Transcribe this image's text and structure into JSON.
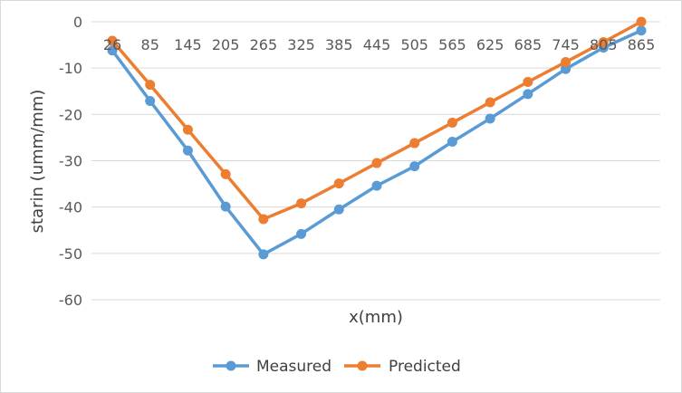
{
  "chart_data": {
    "type": "line",
    "title": "",
    "xlabel": "x(mm)",
    "ylabel": "starin (umm/mm)",
    "categories": [
      "26",
      "85",
      "145",
      "205",
      "265",
      "325",
      "385",
      "445",
      "505",
      "565",
      "625",
      "685",
      "745",
      "805",
      "865"
    ],
    "ylim": [
      -60,
      0
    ],
    "yticks": [
      "0",
      "-10",
      "-20",
      "-30",
      "-40",
      "-50",
      "-60"
    ],
    "grid": true,
    "legend_position": "bottom",
    "series": [
      {
        "name": "Measured",
        "color": "#5b9bd5",
        "values": [
          -6.2,
          -17.1,
          -27.8,
          -39.9,
          -50.2,
          -45.8,
          -40.5,
          -35.4,
          -31.2,
          -25.9,
          -20.9,
          -15.6,
          -10.2,
          -5.6,
          -1.9
        ]
      },
      {
        "name": "Predicted",
        "color": "#ed7d31",
        "values": [
          -4.1,
          -13.6,
          -23.3,
          -32.9,
          -42.6,
          -39.2,
          -34.9,
          -30.5,
          -26.2,
          -21.8,
          -17.4,
          -13.0,
          -8.7,
          -4.4,
          0.0
        ]
      }
    ]
  }
}
